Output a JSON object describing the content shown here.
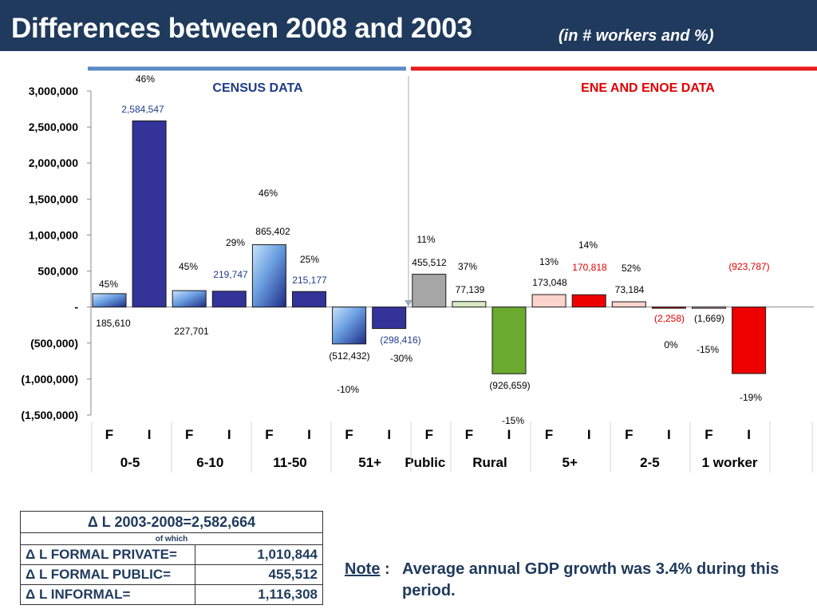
{
  "title": {
    "main": "Differences between 2008 and 2003",
    "sub": "(in # workers and %)"
  },
  "colors": {
    "title_bg": "#1f3a5c",
    "census": "#5b8ac4",
    "ene": "#e81a1a",
    "navy": "#1f3a5c",
    "red_text": "#e00000",
    "blue_text": "#1f3c8a"
  },
  "chart_data": {
    "type": "bar",
    "sections": [
      {
        "label": "CENSUS DATA",
        "color": "#5b8ac4"
      },
      {
        "label": "ENE AND ENOE DATA",
        "color": "#e81a1a"
      }
    ],
    "yticks": [
      "3,000,000",
      "2,500,000",
      "2,000,000",
      "1,500,000",
      "1,000,000",
      "500,000",
      "-",
      "(500,000)",
      "(1,000,000)",
      "(1,500,000)"
    ],
    "ylim": [
      -1500000,
      3000000
    ],
    "groups": [
      "0-5",
      "6-10",
      "11-50",
      "51+",
      "Public",
      "Rural",
      "5+",
      "2-5",
      "1 worker"
    ],
    "bars": [
      {
        "type": "F",
        "group": "0-5",
        "value": 185610,
        "label": "185,610",
        "pct": "45%",
        "fill": "grad-fb",
        "label_color": "#000",
        "pct_color": "#000"
      },
      {
        "type": "I",
        "group": "0-5",
        "value": 2584547,
        "label": "2,584,547",
        "pct": "46%",
        "fill": "#333399",
        "label_color": "#1f3c8a",
        "pct_color": "#000"
      },
      {
        "type": "F",
        "group": "6-10",
        "value": 227701,
        "label": "227,701",
        "pct": "45%",
        "fill": "grad-fb",
        "label_color": "#000",
        "pct_color": "#000"
      },
      {
        "type": "I",
        "group": "6-10",
        "value": 219747,
        "label": "219,747",
        "pct": "29%",
        "fill": "#333399",
        "label_color": "#1f3c8a",
        "pct_color": "#000"
      },
      {
        "type": "F",
        "group": "11-50",
        "value": 865402,
        "label": "865,402",
        "pct": "46%",
        "fill": "grad-fb",
        "label_color": "#000",
        "pct_color": "#000"
      },
      {
        "type": "I",
        "group": "11-50",
        "value": 215177,
        "label": "215,177",
        "pct": "25%",
        "fill": "#333399",
        "label_color": "#1f3c8a",
        "pct_color": "#000"
      },
      {
        "type": "F",
        "group": "51+",
        "value": -512432,
        "label": "(512,432)",
        "pct": "-10%",
        "fill": "grad-fb",
        "label_color": "#000",
        "pct_color": "#000"
      },
      {
        "type": "I",
        "group": "51+",
        "value": -298416,
        "label": "(298,416)",
        "pct": "-30%",
        "fill": "#333399",
        "label_color": "#1f3c8a",
        "pct_color": "#000"
      },
      {
        "type": "F",
        "group": "Public",
        "value": 455512,
        "label": "455,512",
        "pct": "11%",
        "fill": "#a6a6a6",
        "label_color": "#000",
        "pct_color": "#000"
      },
      {
        "type": "F",
        "group": "Rural",
        "value": 77139,
        "label": "77,139",
        "pct": "37%",
        "fill": "#d6e9c0",
        "label_color": "#000",
        "pct_color": "#000"
      },
      {
        "type": "I",
        "group": "Rural",
        "value": -926659,
        "label": "(926,659)",
        "pct": "-15%",
        "fill": "#6aaa2e",
        "label_color": "#000",
        "pct_color": "#000"
      },
      {
        "type": "F",
        "group": "5+",
        "value": 173048,
        "label": "173,048",
        "pct": "13%",
        "fill": "#fbd4cc",
        "label_color": "#000",
        "pct_color": "#000"
      },
      {
        "type": "I",
        "group": "5+",
        "value": 170818,
        "label": "170,818",
        "pct": "14%",
        "fill": "#ee0000",
        "label_color": "#e00000",
        "pct_color": "#000"
      },
      {
        "type": "F",
        "group": "2-5",
        "value": 73184,
        "label": "73,184",
        "pct": "52%",
        "fill": "#fbd4cc",
        "label_color": "#000",
        "pct_color": "#000"
      },
      {
        "type": "I",
        "group": "2-5",
        "value": -2258,
        "label": "(2,258)",
        "pct": "0%",
        "fill": "#ee0000",
        "label_color": "#e00000",
        "pct_color": "#000"
      },
      {
        "type": "F",
        "group": "1 worker",
        "value": -1669,
        "label": "(1,669)",
        "pct": "-15%",
        "fill": "#fbd4cc",
        "label_color": "#000",
        "pct_color": "#000"
      },
      {
        "type": "I",
        "group": "1 worker",
        "value": -923787,
        "label": "(923,787)",
        "pct": "-19%",
        "fill": "#ee0000",
        "label_color": "#e00000",
        "pct_color": "#000"
      }
    ]
  },
  "table": {
    "header": "Δ L 2003-2008=2,582,664",
    "subheader": "of which",
    "rows": [
      {
        "label": "Δ L FORMAL PRIVATE=",
        "value": "1,010,844"
      },
      {
        "label": "Δ L FORMAL PUBLIC=",
        "value": "455,512"
      },
      {
        "label": "Δ L INFORMAL=",
        "value": "1,116,308"
      }
    ]
  },
  "note": {
    "label": "Note",
    "colon": ":",
    "text": "Average annual GDP growth was 3.4% during this period."
  }
}
